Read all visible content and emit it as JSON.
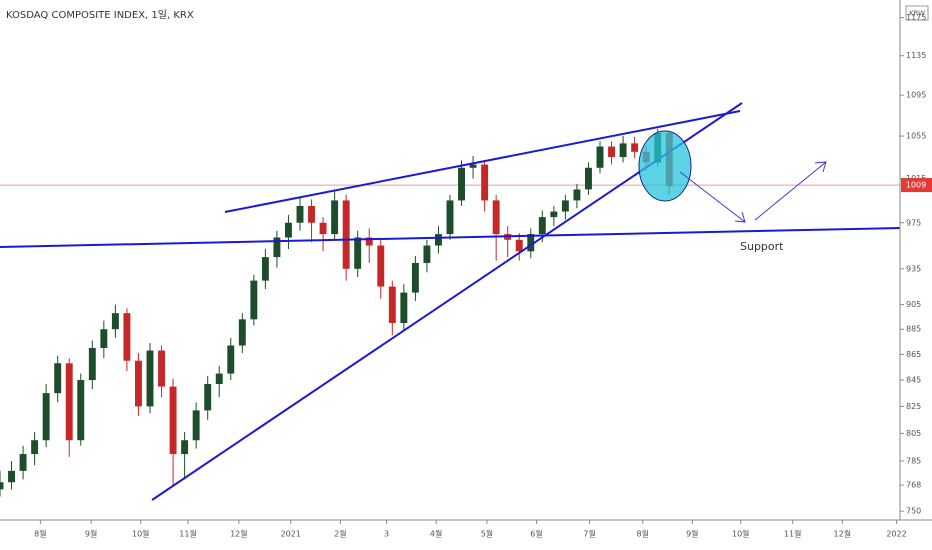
{
  "chart_data": {
    "type": "candlestick",
    "title": "KOSDAQ COMPOSITE INDEX, 1일, KRX",
    "currency": "KRW",
    "annotation": "Support",
    "last_price": 1009,
    "log_scale": true,
    "up_color": "#1e4d2b",
    "down_color": "#c62828",
    "xlim": [
      0,
      78
    ],
    "ylim": [
      744,
      1194
    ],
    "xticks": [
      {
        "value": 3.5,
        "label": "8월"
      },
      {
        "value": 7.9,
        "label": "9월"
      },
      {
        "value": 12.2,
        "label": "10월"
      },
      {
        "value": 16.3,
        "label": "11월"
      },
      {
        "value": 20.7,
        "label": "12월"
      },
      {
        "value": 25.2,
        "label": "2021"
      },
      {
        "value": 29.5,
        "label": "2월"
      },
      {
        "value": 33.5,
        "label": "3"
      },
      {
        "value": 37.8,
        "label": "4월"
      },
      {
        "value": 42.2,
        "label": "5월"
      },
      {
        "value": 46.5,
        "label": "6월"
      },
      {
        "value": 51.1,
        "label": "7월"
      },
      {
        "value": 55.7,
        "label": "8월"
      },
      {
        "value": 60,
        "label": "9월"
      },
      {
        "value": 64.2,
        "label": "10월"
      },
      {
        "value": 68.7,
        "label": "11월"
      },
      {
        "value": 73,
        "label": "12월"
      },
      {
        "value": 77.7,
        "label": "2022"
      }
    ],
    "yticks": [
      1175,
      1135,
      1095,
      1055,
      1015,
      975,
      935,
      905,
      885,
      865,
      845,
      825,
      805,
      785,
      768,
      750
    ],
    "x": [
      0,
      1,
      2,
      3,
      4,
      5,
      6,
      7,
      8,
      9,
      10,
      11,
      12,
      13,
      14,
      15,
      16,
      17,
      18,
      19,
      20,
      21,
      22,
      23,
      24,
      25,
      26,
      27,
      28,
      29,
      30,
      31,
      32,
      33,
      34,
      35,
      36,
      37,
      38,
      39,
      40,
      41,
      42,
      43,
      44,
      45,
      46,
      47,
      48,
      49,
      50,
      51,
      52,
      53,
      54,
      55,
      56,
      57,
      58
    ],
    "open": [
      765,
      770,
      778,
      790,
      800,
      835,
      858,
      800,
      845,
      870,
      885,
      898,
      860,
      825,
      868,
      840,
      790,
      800,
      822,
      842,
      850,
      872,
      893,
      925,
      945,
      962,
      975,
      990,
      975,
      965,
      995,
      935,
      962,
      955,
      920,
      890,
      915,
      940,
      955,
      965,
      995,
      1025,
      1028,
      995,
      965,
      960,
      950,
      965,
      980,
      985,
      995,
      1005,
      1025,
      1045,
      1035,
      1048,
      1040,
      1030,
      1058
    ],
    "high": [
      778,
      785,
      796,
      806,
      842,
      864,
      862,
      850,
      876,
      892,
      905,
      902,
      866,
      874,
      872,
      846,
      806,
      828,
      848,
      856,
      878,
      898,
      930,
      952,
      968,
      982,
      998,
      996,
      980,
      1004,
      1000,
      968,
      970,
      960,
      925,
      922,
      946,
      960,
      972,
      1000,
      1032,
      1036,
      1032,
      1000,
      972,
      966,
      970,
      986,
      990,
      1000,
      1010,
      1030,
      1050,
      1050,
      1055,
      1054,
      1046,
      1062,
      1060
    ],
    "low": [
      760,
      765,
      772,
      782,
      795,
      828,
      788,
      796,
      838,
      862,
      878,
      852,
      818,
      820,
      832,
      768,
      772,
      794,
      815,
      832,
      845,
      866,
      888,
      918,
      936,
      952,
      968,
      958,
      950,
      960,
      925,
      928,
      940,
      910,
      880,
      884,
      908,
      932,
      948,
      960,
      990,
      1015,
      985,
      942,
      945,
      942,
      944,
      958,
      972,
      978,
      988,
      1000,
      1020,
      1028,
      1030,
      1034,
      1022,
      1026,
      1000
    ],
    "close": [
      770,
      778,
      790,
      800,
      835,
      858,
      800,
      845,
      870,
      885,
      898,
      860,
      825,
      868,
      840,
      790,
      800,
      822,
      842,
      850,
      872,
      893,
      925,
      945,
      962,
      975,
      990,
      975,
      965,
      995,
      935,
      962,
      955,
      920,
      890,
      915,
      940,
      955,
      965,
      995,
      1025,
      1028,
      995,
      965,
      960,
      950,
      965,
      980,
      985,
      995,
      1005,
      1025,
      1045,
      1035,
      1048,
      1040,
      1030,
      1058,
      1008
    ]
  }
}
